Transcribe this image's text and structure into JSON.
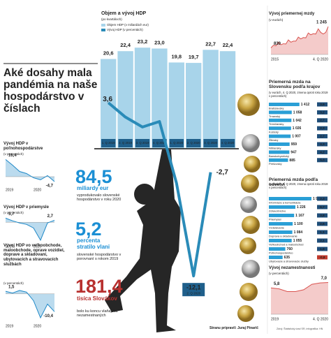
{
  "headline": "Aké dosahy mala pandémia na naše hospodárstvo v číslach",
  "stats": [
    {
      "value": "84,5",
      "unit": "miliardy eur",
      "text": "vyprodukovalo slovenské hospodárstvo v roku 2020",
      "color": "#1b8fd4"
    },
    {
      "value": "5,2",
      "unit": "percenta stratilo vlani",
      "text": "slovenské hospodárstvo v porovnaní s rokom 2019",
      "color": "#1b8fd4"
    },
    {
      "value": "181,4",
      "unit": "tisíca Slovákov",
      "text": "bolo ku koncu vlaňajška nezamestnaných",
      "color": "#b8312f"
    }
  ],
  "credits": {
    "author": "Stranu pripravil: Juraj Pinarič",
    "source": "Zdroj: Štatistický úrad SR, infografika: HN"
  },
  "chart_data": [
    {
      "type": "bar",
      "title": "Objem a vývoj HDP",
      "subtitle": "(po kvartáloch)",
      "categories": [
        "1. Q 2019",
        "2. Q 2019",
        "3. Q 2019",
        "4. Q 2019",
        "1. Q 2020",
        "2. Q 2020",
        "3. Q 2020",
        "4. Q 2020"
      ],
      "series": [
        {
          "name": "Objem HDP (v miliardách eur)",
          "color": "#a8d4ea",
          "values": [
            20.6,
            22.4,
            23.2,
            23.0,
            19.8,
            19.7,
            22.7,
            22.4
          ],
          "value_labels": [
            "20,6",
            "22,4",
            "23,2",
            "23,0",
            "19,8",
            "19,7",
            "22,7",
            "22,4"
          ]
        },
        {
          "name": "Vývoj HDP (v percentách)",
          "type": "line",
          "axis": "y2",
          "color": "#2a8bb8",
          "values": [
            3.6,
            2.3,
            1.4,
            1.9,
            -3.7,
            -12.1,
            -2.7,
            null
          ],
          "value_labels": [
            "3,6",
            null,
            null,
            null,
            null,
            "-12,1",
            "-2,7",
            null
          ]
        }
      ],
      "ylim": [
        0,
        25
      ],
      "y2lim": [
        -13,
        8
      ]
    },
    {
      "type": "area",
      "title": "Vývoj HDP v poľnohospodárstve",
      "subtitle": "(v percentách)",
      "color": "#1e88c7",
      "categories": [
        "2019",
        null,
        null,
        null,
        "2020",
        null,
        null,
        null
      ],
      "values": [
        16.4,
        11,
        5,
        3,
        -1,
        -3,
        1,
        -4.7
      ],
      "value_labels": [
        "16,4",
        null,
        null,
        null,
        null,
        null,
        null,
        "-4,7"
      ],
      "ylim": [
        -8,
        18
      ]
    },
    {
      "type": "area",
      "title": "Vývoj HDP v priemysle",
      "subtitle": "(v percentách)",
      "color": "#1e88c7",
      "categories": [
        "2019",
        null,
        null,
        null,
        "2020",
        null,
        null,
        null
      ],
      "values": [
        5.7,
        2,
        -1,
        -3,
        -8,
        -25,
        -1,
        2.7
      ],
      "value_labels": [
        "5,7",
        null,
        null,
        null,
        null,
        null,
        null,
        "2,7"
      ],
      "ylim": [
        -27,
        8
      ]
    },
    {
      "type": "area",
      "title": "Vývoj HDP vo veľkoobchode, maloobchode, oprave vozidiel, doprave a skladovaní, ubytovacích a stravovacích službách",
      "subtitle": "(v percentách)",
      "color": "#1e88c7",
      "categories": [
        "2019",
        null,
        null,
        null,
        "2020",
        null,
        null,
        null
      ],
      "values": [
        1.5,
        0.5,
        2,
        1,
        -4,
        -14,
        -6,
        -10.4
      ],
      "value_labels": [
        "1,5",
        null,
        null,
        null,
        null,
        null,
        null,
        "-10,4"
      ],
      "ylim": [
        -16,
        4
      ]
    },
    {
      "type": "area",
      "title": "Vývoj priemernej mzdy",
      "subtitle": "(v eurách)",
      "color": "#d9534f",
      "categories": [
        "2015",
        null,
        null,
        null,
        null,
        null,
        null,
        null,
        null,
        null,
        null,
        null,
        null,
        null,
        null,
        null,
        null,
        null,
        null,
        null,
        null,
        null,
        null,
        "4. Q 2020"
      ],
      "values": [
        830,
        880,
        870,
        940,
        890,
        910,
        905,
        985,
        940,
        960,
        960,
        1040,
        1005,
        1030,
        1025,
        1120,
        1085,
        1105,
        1100,
        1200,
        1130,
        1100,
        1130,
        1245
      ],
      "value_labels": [
        "830",
        null,
        null,
        null,
        null,
        null,
        null,
        null,
        null,
        null,
        null,
        null,
        null,
        null,
        null,
        null,
        null,
        null,
        null,
        null,
        null,
        null,
        null,
        "1 245"
      ],
      "ylim": [
        700,
        1300
      ]
    },
    {
      "type": "hbar",
      "title": "Priemerná mzda na Slovensku podľa krajov",
      "subtitle": "(v eurách, 4. Q 2020, zmena oproti roku 2019 v percentách)",
      "color": "#2a9fd6",
      "categories": [
        "Bratislavský",
        "Trnavský",
        "Trenčiansky",
        "Košický",
        "Žilinský",
        "Nitriansky",
        "Banskobystrický",
        "Prešovský"
      ],
      "values": [
        1412,
        1058,
        1042,
        1026,
        1007,
        959,
        947,
        885
      ],
      "value_labels": [
        "1 412",
        "1 058",
        "1 042",
        "1 026",
        "1 007",
        "959",
        "947",
        "885"
      ],
      "changes": [
        3.9,
        3.2,
        2.7,
        2.3,
        2.7,
        4.3,
        4.2,
        5.3
      ],
      "change_labels": [
        "3,9",
        "3,2",
        "2,7",
        "2,3",
        "2,7",
        "4,3",
        "4,2",
        "5,3"
      ],
      "xlim": [
        0,
        2000
      ]
    },
    {
      "type": "hbar",
      "title": "Priemerná mzda podľa odvetví",
      "subtitle": "(v eurách, 4. Q 2020, zmena oproti roku 2019 v percentách)",
      "color": "#2a9fd6",
      "categories": [
        "Informácie a komunikácia",
        "Zdravotníctvo",
        "Priemysel",
        "Vzdelávanie",
        "Doprava a skladovanie",
        "Veľkoobchod a maloobchod",
        "Poľnohospodárstvo",
        "Ubytovacie a stravovacie služby"
      ],
      "values": [
        1967,
        1226,
        1167,
        1100,
        1084,
        1055,
        760,
        635
      ],
      "value_labels": [
        "1 967",
        "1 226",
        "1 167",
        "1 100",
        "1 084",
        "1 055",
        "760",
        "635"
      ],
      "changes": [
        2.3,
        6.7,
        3.8,
        2.6,
        1.1,
        2.1,
        1.9,
        -0.8
      ],
      "change_labels": [
        "2,3",
        "6,7",
        "3,8",
        "2,6",
        "1,1",
        "2,1",
        "1,9",
        "-0,8"
      ],
      "xlim": [
        0,
        2000
      ]
    },
    {
      "type": "area",
      "title": "Vývoj nezamestnanosti",
      "subtitle": "(v percentách)",
      "color": "#d9534f",
      "categories": [
        "2019",
        null,
        null,
        null,
        null,
        null,
        null,
        "4. Q 2020"
      ],
      "values": [
        5.8,
        5.6,
        5.0,
        5.0,
        5.4,
        6.6,
        6.9,
        7.0
      ],
      "value_labels": [
        "5,8",
        null,
        null,
        null,
        null,
        null,
        null,
        "7,0"
      ],
      "ylim": [
        0,
        8
      ]
    }
  ]
}
